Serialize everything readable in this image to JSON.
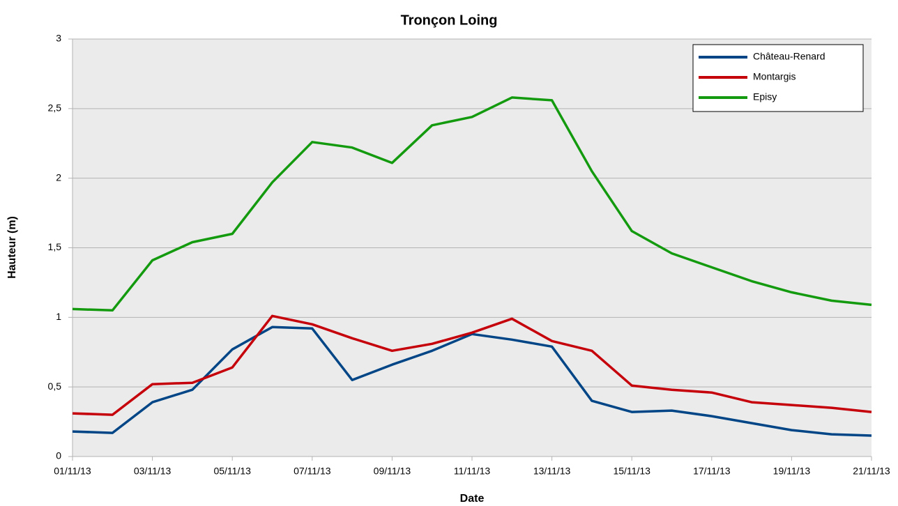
{
  "chart_data": {
    "type": "line",
    "title": "Tronçon Loing",
    "xlabel": "Date",
    "ylabel": "Hauteur (m)",
    "x": [
      "2013-11-01",
      "2013-11-02",
      "2013-11-03",
      "2013-11-04",
      "2013-11-05",
      "2013-11-06",
      "2013-11-07",
      "2013-11-08",
      "2013-11-09",
      "2013-11-10",
      "2013-11-11",
      "2013-11-12",
      "2013-11-13",
      "2013-11-14",
      "2013-11-15",
      "2013-11-16",
      "2013-11-17",
      "2013-11-18",
      "2013-11-19",
      "2013-11-20",
      "2013-11-21"
    ],
    "series": [
      {
        "name": "Château-Renard",
        "color": "#004586",
        "values": [
          0.18,
          0.17,
          0.39,
          0.48,
          0.77,
          0.93,
          0.92,
          0.55,
          0.66,
          0.76,
          0.88,
          0.84,
          0.79,
          0.4,
          0.32,
          0.33,
          0.29,
          0.24,
          0.19,
          0.16,
          0.15
        ]
      },
      {
        "name": "Montargis",
        "color": "#c5000b",
        "values": [
          0.31,
          0.3,
          0.52,
          0.53,
          0.64,
          1.01,
          0.95,
          0.85,
          0.76,
          0.81,
          0.89,
          0.99,
          0.83,
          0.76,
          0.51,
          0.48,
          0.46,
          0.39,
          0.37,
          0.35,
          0.32
        ]
      },
      {
        "name": "Episy",
        "color": "#139a0e",
        "values": [
          1.06,
          1.05,
          1.41,
          1.54,
          1.6,
          1.97,
          2.26,
          2.22,
          2.11,
          2.38,
          2.44,
          2.58,
          2.56,
          2.05,
          1.62,
          1.46,
          1.36,
          1.26,
          1.18,
          1.12,
          1.09
        ]
      }
    ],
    "xlim": [
      "2013-11-01",
      "2013-11-21"
    ],
    "xticks": [
      {
        "value": "2013-11-01",
        "label": "01/11/13"
      },
      {
        "value": "2013-11-03",
        "label": "03/11/13"
      },
      {
        "value": "2013-11-05",
        "label": "05/11/13"
      },
      {
        "value": "2013-11-07",
        "label": "07/11/13"
      },
      {
        "value": "2013-11-09",
        "label": "09/11/13"
      },
      {
        "value": "2013-11-11",
        "label": "11/11/13"
      },
      {
        "value": "2013-11-13",
        "label": "13/11/13"
      },
      {
        "value": "2013-11-15",
        "label": "15/11/13"
      },
      {
        "value": "2013-11-17",
        "label": "17/11/13"
      },
      {
        "value": "2013-11-19",
        "label": "19/11/13"
      },
      {
        "value": "2013-11-21",
        "label": "21/11/13"
      }
    ],
    "ylim": [
      0,
      3
    ],
    "yticks": [
      0,
      {
        "value": 0.5,
        "label": "0,5"
      },
      1,
      {
        "value": 1.5,
        "label": "1,5"
      },
      2,
      {
        "value": 2.5,
        "label": "2,5"
      },
      3
    ],
    "grid": true,
    "legend": "upper right"
  }
}
